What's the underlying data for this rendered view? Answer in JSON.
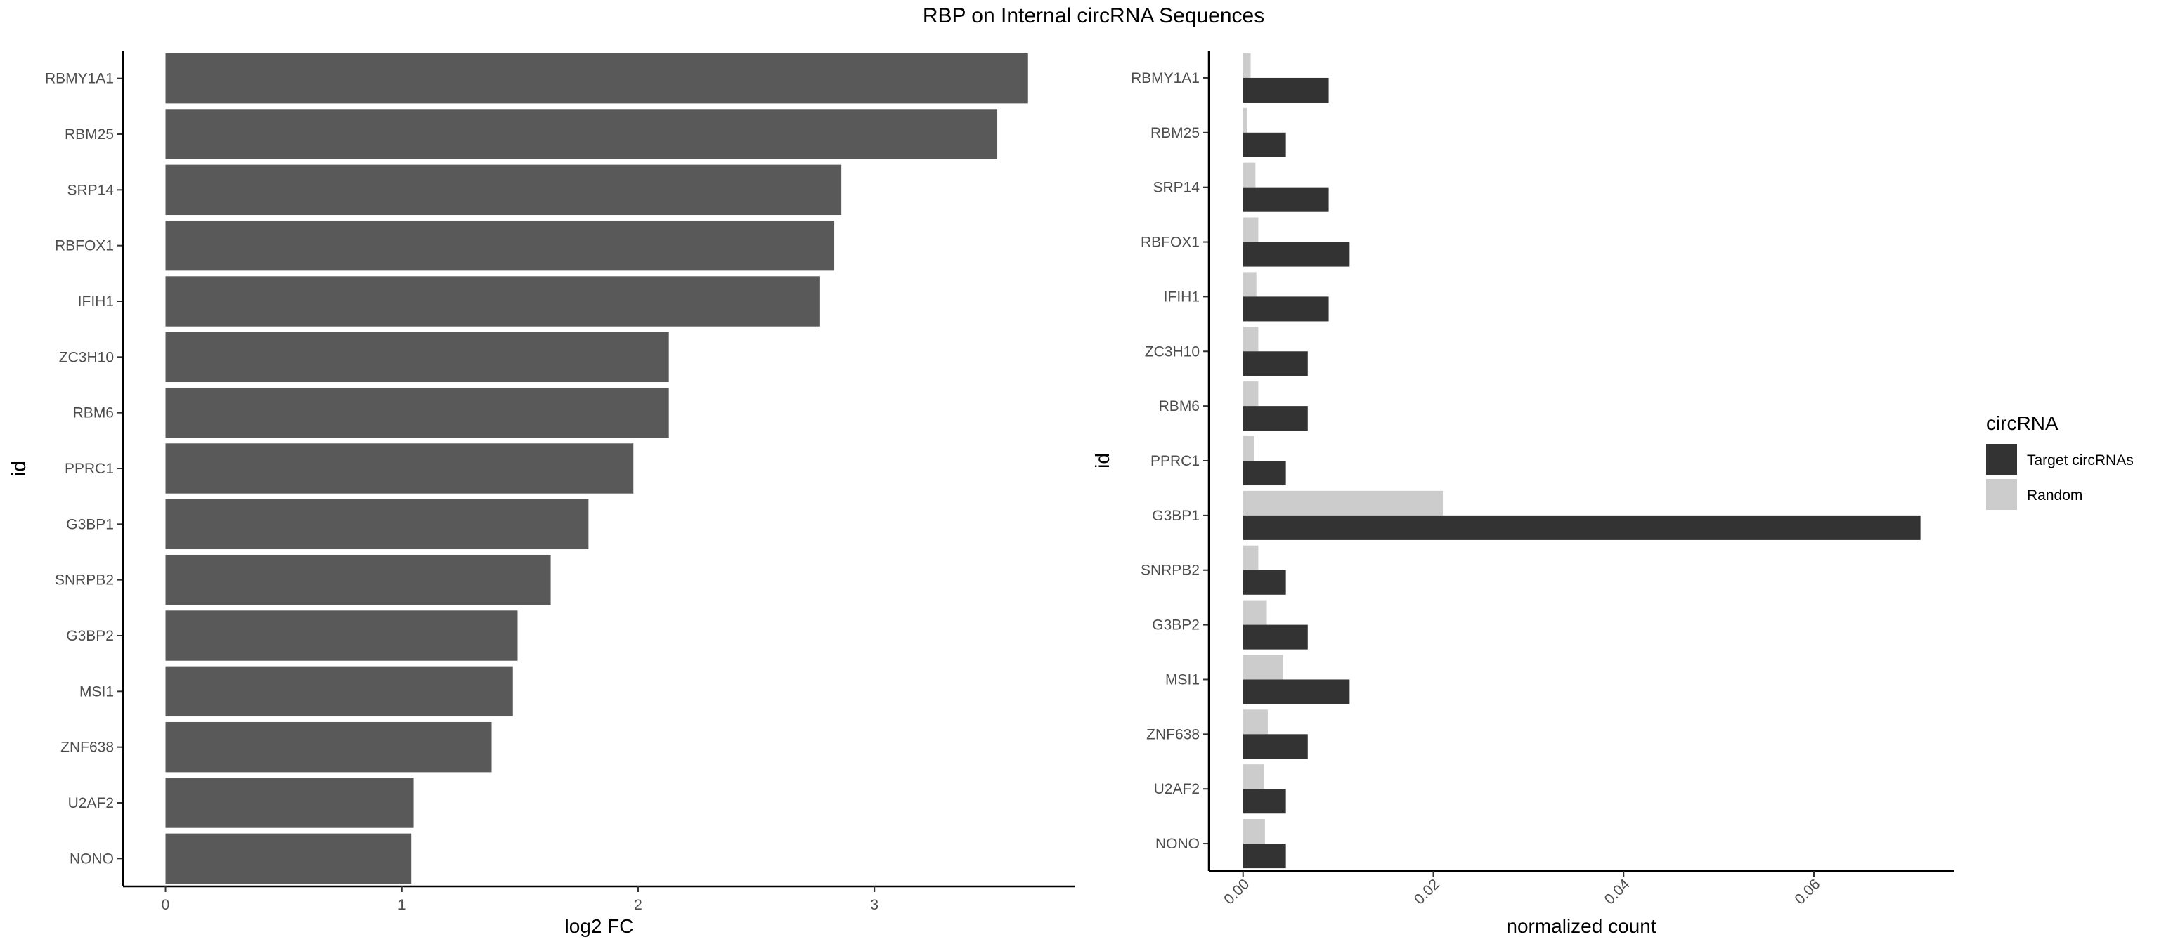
{
  "title": "RBP on Internal circRNA Sequences",
  "chart_data": [
    {
      "type": "bar",
      "orientation": "horizontal",
      "categories": [
        "RBMY1A1",
        "RBM25",
        "SRP14",
        "RBFOX1",
        "IFIH1",
        "ZC3H10",
        "RBM6",
        "PPRC1",
        "G3BP1",
        "SNRPB2",
        "G3BP2",
        "MSI1",
        "ZNF638",
        "U2AF2",
        "NONO"
      ],
      "values": [
        3.65,
        3.52,
        2.86,
        2.83,
        2.77,
        2.13,
        2.13,
        1.98,
        1.79,
        1.63,
        1.49,
        1.47,
        1.38,
        1.05,
        1.04
      ],
      "xlabel": "log2 FC",
      "ylabel": "id",
      "xlim": [
        -0.18,
        3.85
      ],
      "xticks": [
        0,
        1,
        2,
        3
      ],
      "xtick_labels": [
        "0",
        "1",
        "2",
        "3"
      ],
      "grid": false,
      "colors": {
        "bar": "#595959"
      }
    },
    {
      "type": "bar",
      "orientation": "horizontal",
      "grouping": "dodge",
      "categories": [
        "RBMY1A1",
        "RBM25",
        "SRP14",
        "RBFOX1",
        "IFIH1",
        "ZC3H10",
        "RBM6",
        "PPRC1",
        "G3BP1",
        "SNRPB2",
        "G3BP2",
        "MSI1",
        "ZNF638",
        "U2AF2",
        "NONO"
      ],
      "series": [
        {
          "name": "Target circRNAs",
          "color": "#333333",
          "values": [
            0.009,
            0.0045,
            0.009,
            0.0112,
            0.009,
            0.0068,
            0.0068,
            0.0045,
            0.0712,
            0.0045,
            0.0068,
            0.0112,
            0.0068,
            0.0045,
            0.0045
          ]
        },
        {
          "name": "Random",
          "color": "#cccccc",
          "values": [
            0.0008,
            0.0004,
            0.0013,
            0.0016,
            0.0014,
            0.0016,
            0.0016,
            0.0012,
            0.021,
            0.0016,
            0.0025,
            0.0042,
            0.0026,
            0.0022,
            0.0023
          ]
        }
      ],
      "xlabel": "normalized count",
      "ylabel": "id",
      "xlim": [
        -0.0036,
        0.0747
      ],
      "xticks": [
        0,
        0.02,
        0.04,
        0.06
      ],
      "xtick_labels": [
        "0.00",
        "0.02",
        "0.04",
        "0.06"
      ],
      "xtick_rotation": -45,
      "grid": false,
      "legend": {
        "title": "circRNA",
        "placement": "right"
      }
    }
  ]
}
